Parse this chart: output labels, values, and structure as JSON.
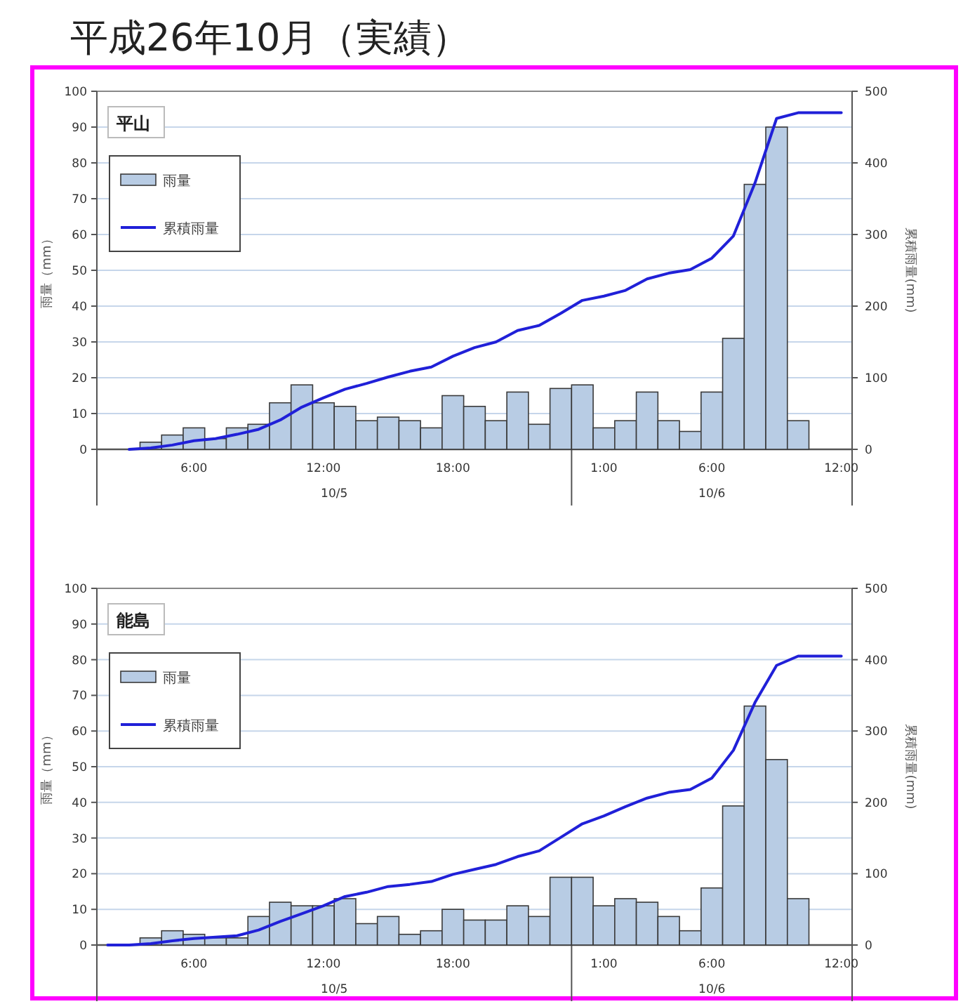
{
  "chart_data": [
    {
      "type": "bar",
      "title": "平成26年10月（実績）",
      "subtitle": "平山",
      "ylabel": "雨量（mm）",
      "y2label": "累積雨量(mm)",
      "categories": [
        null,
        null,
        null,
        null,
        "6:00",
        null,
        null,
        null,
        null,
        null,
        "12:00",
        null,
        null,
        null,
        null,
        null,
        "18:00",
        null,
        null,
        null,
        null,
        null,
        null,
        "1:00",
        null,
        null,
        null,
        null,
        "6:00",
        null,
        null,
        null,
        null,
        null,
        "12:00"
      ],
      "series": [
        {
          "name": "雨量",
          "color": "#b8cce4",
          "values": [
            null,
            null,
            2,
            4,
            6,
            3,
            6,
            7,
            13,
            18,
            13,
            12,
            8,
            9,
            8,
            6,
            15,
            12,
            8,
            16,
            7,
            17,
            18,
            6,
            8,
            16,
            8,
            5,
            16,
            31,
            74,
            90,
            8,
            null,
            null
          ]
        },
        {
          "name": "累積雨量",
          "type": "line",
          "axis": "y2",
          "color": "#2020d8",
          "values": [
            null,
            0,
            2,
            6,
            12,
            15,
            21,
            28,
            41,
            59,
            72,
            84,
            92,
            101,
            109,
            115,
            130,
            142,
            150,
            166,
            173,
            190,
            208,
            214,
            222,
            238,
            246,
            251,
            267,
            298,
            372,
            462,
            470,
            470,
            470
          ]
        }
      ],
      "ylim": [
        0,
        100
      ],
      "yticks": [
        0,
        10,
        20,
        30,
        40,
        50,
        60,
        70,
        80,
        90,
        100
      ],
      "y2lim": [
        0,
        500
      ],
      "y2ticks": [
        0,
        100,
        200,
        300,
        400,
        500
      ],
      "grid": "y",
      "legend": "top left",
      "annotations": [
        "10/5",
        "10/6"
      ]
    },
    {
      "type": "bar",
      "subtitle": "能島",
      "ylabel": "雨量（mm）",
      "y2label": "累積雨量(mm)",
      "categories": [
        null,
        null,
        null,
        null,
        "6:00",
        null,
        null,
        null,
        null,
        null,
        "12:00",
        null,
        null,
        null,
        null,
        null,
        "18:00",
        null,
        null,
        null,
        null,
        null,
        null,
        "1:00",
        null,
        null,
        null,
        null,
        "6:00",
        null,
        null,
        null,
        null,
        null,
        "12:00"
      ],
      "series": [
        {
          "name": "雨量",
          "color": "#b8cce4",
          "values": [
            null,
            null,
            2,
            4,
            3,
            2,
            2,
            8,
            12,
            11,
            11,
            13,
            6,
            8,
            3,
            4,
            10,
            7,
            7,
            11,
            8,
            19,
            19,
            11,
            13,
            12,
            8,
            4,
            16,
            39,
            67,
            52,
            13,
            null,
            null
          ]
        },
        {
          "name": "累積雨量",
          "type": "line",
          "axis": "y2",
          "color": "#2020d8",
          "values": [
            0,
            0,
            2,
            6,
            9,
            11,
            13,
            21,
            33,
            44,
            55,
            68,
            74,
            82,
            85,
            89,
            99,
            106,
            113,
            124,
            132,
            151,
            170,
            181,
            194,
            206,
            214,
            218,
            234,
            273,
            340,
            392,
            405,
            405,
            405
          ]
        }
      ],
      "ylim": [
        0,
        100
      ],
      "yticks": [
        0,
        10,
        20,
        30,
        40,
        50,
        60,
        70,
        80,
        90,
        100
      ],
      "y2lim": [
        0,
        500
      ],
      "y2ticks": [
        0,
        100,
        200,
        300,
        400,
        500
      ],
      "grid": "y",
      "legend": "top left",
      "annotations": [
        "10/5",
        "10/6"
      ]
    }
  ]
}
